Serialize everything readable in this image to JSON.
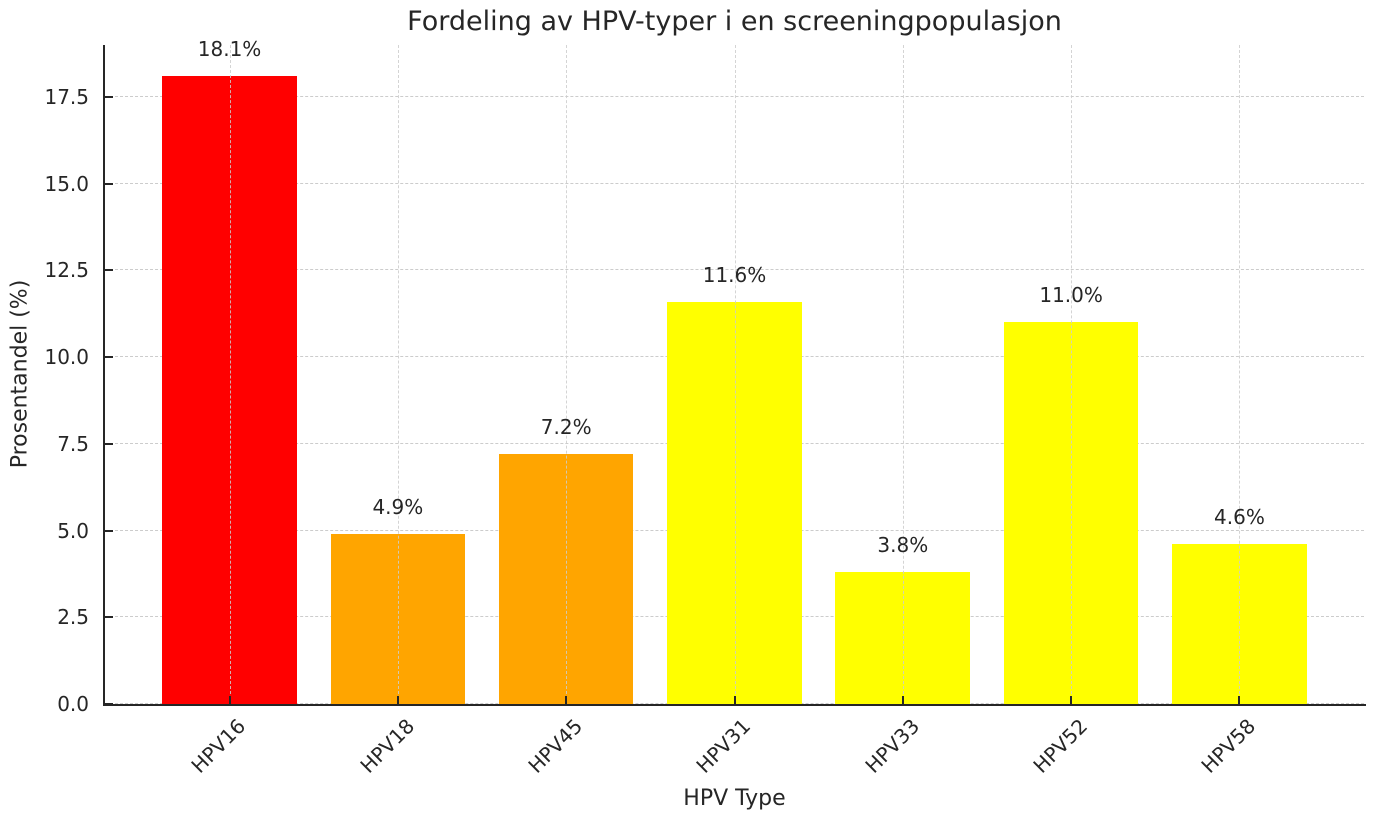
{
  "chart_data": {
    "type": "bar",
    "title": "Fordeling av HPV-typer i en screeningpopulasjon",
    "xlabel": "HPV Type",
    "ylabel": "Prosentandel (%)",
    "categories": [
      "HPV16",
      "HPV18",
      "HPV45",
      "HPV31",
      "HPV33",
      "HPV52",
      "HPV58"
    ],
    "values": [
      18.1,
      4.9,
      7.2,
      11.6,
      3.8,
      11.0,
      4.6
    ],
    "value_labels": [
      "18.1%",
      "4.9%",
      "7.2%",
      "11.6%",
      "3.8%",
      "11.0%",
      "4.6%"
    ],
    "bar_colors": [
      "#ff0000",
      "#ffa500",
      "#ffa500",
      "#ffff00",
      "#ffff00",
      "#ffff00",
      "#ffff00"
    ],
    "y_ticks": [
      0.0,
      2.5,
      5.0,
      7.5,
      10.0,
      12.5,
      15.0,
      17.5
    ],
    "y_tick_labels": [
      "0.0",
      "2.5",
      "5.0",
      "7.5",
      "10.0",
      "12.5",
      "15.0",
      "17.5"
    ],
    "ylim": [
      0,
      19
    ],
    "grid": true,
    "grid_axes": "both",
    "grid_style": "dashed",
    "grid_color": "#cccccc",
    "axis_color": "#262626",
    "text_color": "#262626",
    "background_color": "#ffffff",
    "legend": null
  }
}
